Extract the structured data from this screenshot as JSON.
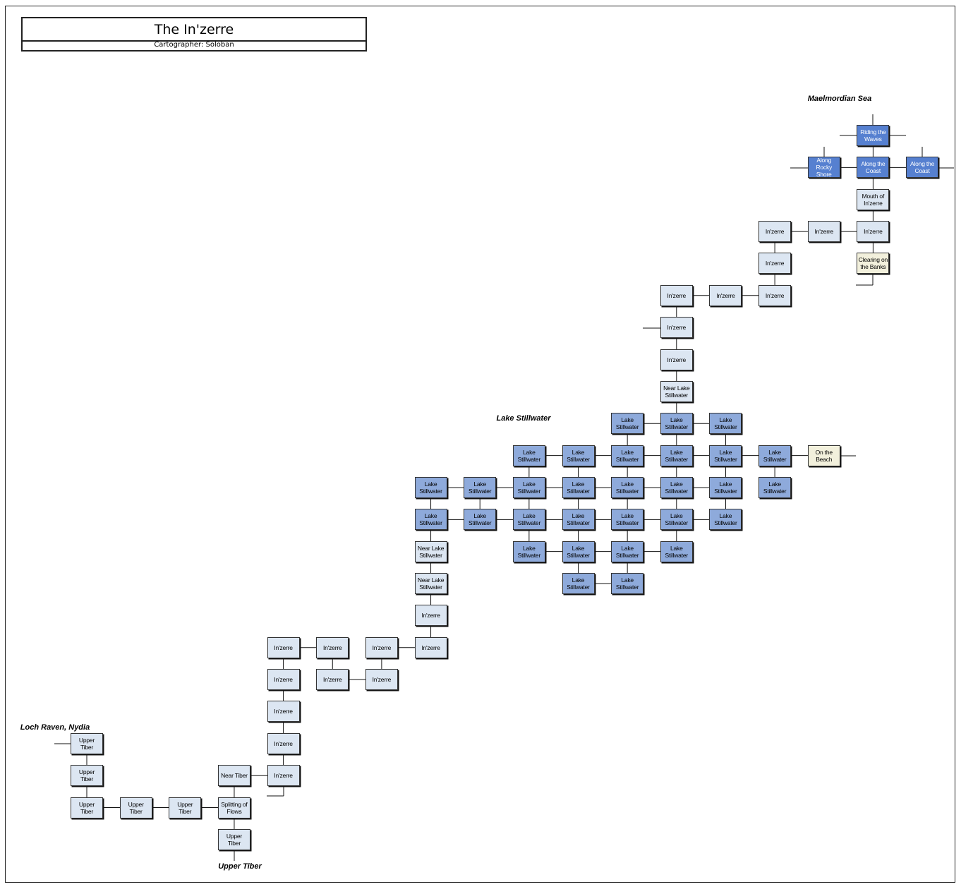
{
  "header": {
    "title": "The In'zerre",
    "subtitle": "Cartographer: Soloban"
  },
  "regions": [
    "Maelmordian Sea",
    "Lake Stillwater",
    "Loch Raven, Nydia",
    "Upper Tiber"
  ],
  "nodes": [
    "Riding the Waves",
    "Along Rocky Shore",
    "Along the Coast",
    "Along the Coast",
    "Mouth of In'zerre",
    "In'zerre",
    "In'zerre",
    "In'zerre",
    "Clearing on the Banks",
    "In'zerre",
    "In'zerre",
    "In'zerre",
    "In'zerre",
    "In'zerre",
    "In'zerre",
    "Near Lake Stillwater",
    "Lake Stillwater",
    "Lake Stillwater",
    "Lake Stillwater",
    "Lake Stillwater",
    "Lake Stillwater",
    "Lake Stillwater",
    "Lake Stillwater",
    "Lake Stillwater",
    "Lake Stillwater",
    "On the Beach",
    "Lake Stillwater",
    "Lake Stillwater",
    "Lake Stillwater",
    "Lake Stillwater",
    "Lake Stillwater",
    "Lake Stillwater",
    "Lake Stillwater",
    "Lake Stillwater",
    "Lake Stillwater",
    "Lake Stillwater",
    "Lake Stillwater",
    "Lake Stillwater",
    "Lake Stillwater",
    "Lake Stillwater",
    "Lake Stillwater",
    "Lake Stillwater",
    "Lake Stillwater",
    "Lake Stillwater",
    "Lake Stillwater",
    "Lake Stillwater",
    "Lake Stillwater",
    "Near Lake Stillwater",
    "Near Lake Stillwater",
    "In'zerre",
    "In'zerre",
    "In'zerre",
    "In'zerre",
    "In'zerre",
    "In'zerre",
    "In'zerre",
    "In'zerre",
    "In'zerre",
    "In'zerre",
    "In'zerre",
    "Near Tiber",
    "Upper Tiber",
    "Upper Tiber",
    "Upper Tiber",
    "Upper Tiber",
    "Upper Tiber",
    "Splitting of Flows",
    "Upper Tiber"
  ]
}
